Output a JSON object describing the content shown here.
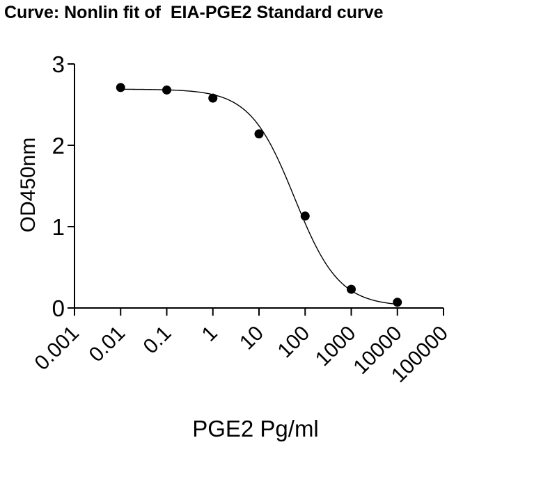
{
  "chart_data": {
    "type": "scatter",
    "title": "Curve: Nonlin fit of  EIA-PGE2 Standard curve",
    "xlabel": "PGE2 Pg/ml",
    "ylabel": "OD450nm",
    "x_scale": "log",
    "xlim": [
      0.001,
      100000
    ],
    "ylim": [
      0,
      3
    ],
    "x_ticks": [
      "0.001",
      "0.01",
      "0.1",
      "1",
      "10",
      "100",
      "1000",
      "10000",
      "100000"
    ],
    "y_ticks": [
      "0",
      "1",
      "2",
      "3"
    ],
    "grid": false,
    "legend": "none",
    "series": [
      {
        "marker": "filled-circle",
        "color": "#000000",
        "x": [
          0.01,
          0.1,
          1,
          10,
          100,
          1000,
          10000
        ],
        "y": [
          2.71,
          2.68,
          2.58,
          2.14,
          1.13,
          0.23,
          0.07
        ]
      }
    ],
    "fit": {
      "type": "four-parameter-logistic",
      "top": 2.69,
      "bottom": 0.02,
      "log_ec50": 1.77,
      "hill_slope": -0.9,
      "color": "#000000"
    }
  }
}
